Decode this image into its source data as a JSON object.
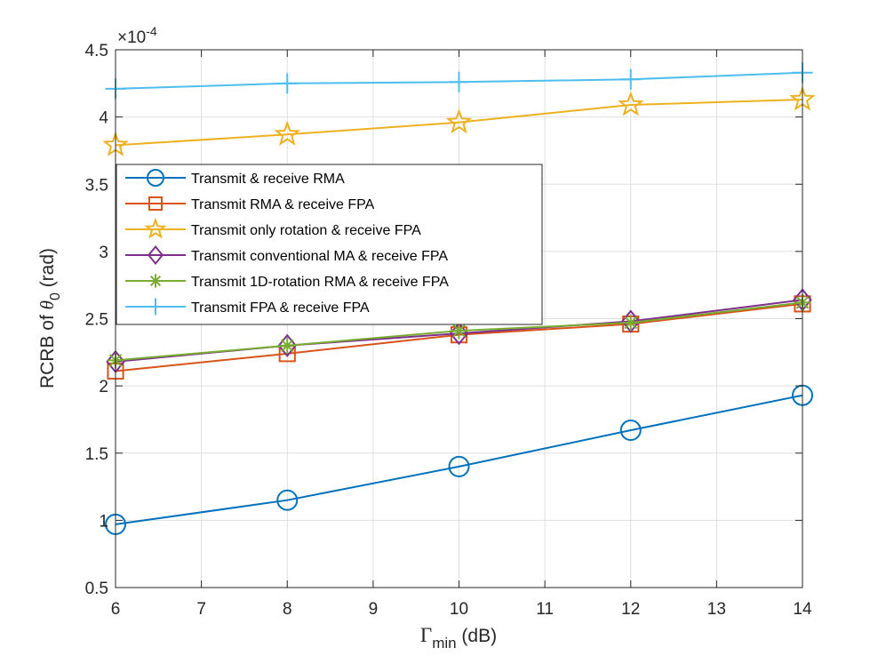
{
  "chart_data": {
    "type": "line",
    "title": "",
    "xlabel": "Γ",
    "xlabel_subscript": "min",
    "xlabel_unit": " (dB)",
    "ylabel_prefix": "RCRB of ",
    "ylabel_symbol": "θ",
    "ylabel_subscript": "0",
    "ylabel_unit": " (rad)",
    "y_multiplier_base": "×10",
    "y_multiplier_exp": "-4",
    "xlim": [
      6,
      14
    ],
    "ylim": [
      0.5,
      4.5
    ],
    "xticks": [
      "6",
      "7",
      "8",
      "9",
      "10",
      "11",
      "12",
      "13",
      "14"
    ],
    "yticks": [
      "0.5",
      "1",
      "1.5",
      "2",
      "2.5",
      "3",
      "3.5",
      "4",
      "4.5"
    ],
    "grid": true,
    "legend_location": "upper-left",
    "x": [
      6,
      8,
      10,
      12,
      14
    ],
    "series": [
      {
        "name": "Transmit & receive RMA",
        "values": [
          0.97,
          1.15,
          1.4,
          1.67,
          1.93
        ],
        "color": "#0072BD",
        "marker": "circle"
      },
      {
        "name": "Transmit RMA & receive FPA",
        "values": [
          2.11,
          2.24,
          2.38,
          2.46,
          2.61
        ],
        "color": "#D95319",
        "marker": "square"
      },
      {
        "name": "Transmit only rotation & receive FPA",
        "values": [
          3.79,
          3.87,
          3.96,
          4.09,
          4.13
        ],
        "color": "#EDB120",
        "marker": "pentagram"
      },
      {
        "name": "Transmit conventional MA & receive FPA",
        "values": [
          2.18,
          2.3,
          2.39,
          2.48,
          2.64
        ],
        "color": "#7E2F8E",
        "marker": "diamond"
      },
      {
        "name": "Transmit 1D-rotation RMA & receive FPA",
        "values": [
          2.19,
          2.3,
          2.41,
          2.47,
          2.62
        ],
        "color": "#77AC30",
        "marker": "asterisk"
      },
      {
        "name": "Transmit FPA & receive FPA",
        "values": [
          4.21,
          4.25,
          4.26,
          4.28,
          4.33
        ],
        "color": "#4DBEEE",
        "marker": "plus"
      }
    ]
  }
}
